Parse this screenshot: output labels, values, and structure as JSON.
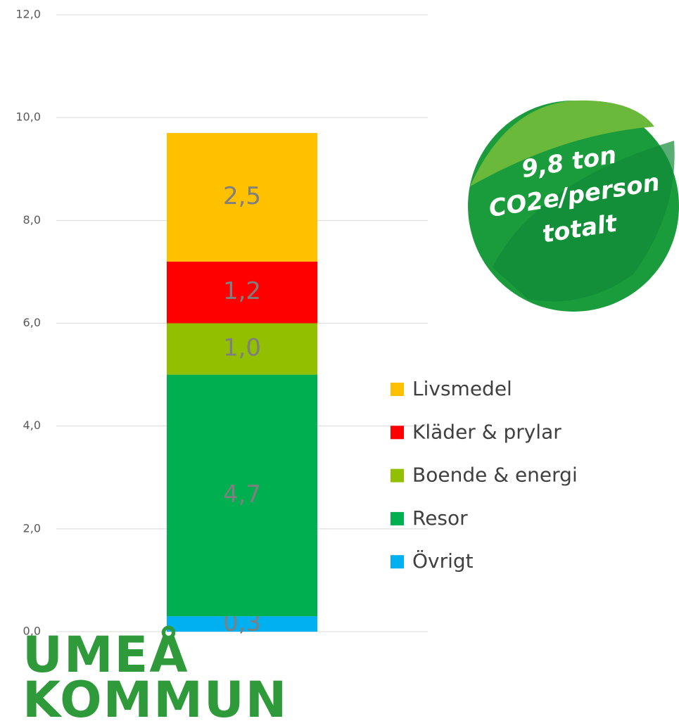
{
  "chart_data": {
    "type": "stacked_bar",
    "categories": [
      null
    ],
    "series": [
      {
        "name": "Övrigt",
        "color": "#00b0f0",
        "values": [
          0.3
        ],
        "value_labels": [
          "0,3"
        ]
      },
      {
        "name": "Resor",
        "color": "#00b050",
        "values": [
          4.7
        ],
        "value_labels": [
          "4,7"
        ]
      },
      {
        "name": "Boende & energi",
        "color": "#92c000",
        "values": [
          1.0
        ],
        "value_labels": [
          "1,0"
        ]
      },
      {
        "name": "Kläder & prylar",
        "color": "#ff0000",
        "values": [
          1.2
        ],
        "value_labels": [
          "1,2"
        ]
      },
      {
        "name": "Livsmedel",
        "color": "#ffc000",
        "values": [
          2.5
        ],
        "value_labels": [
          "2,5"
        ]
      }
    ],
    "ylim": [
      0,
      12
    ],
    "yticks": [
      {
        "value": 0,
        "label": "0,0"
      },
      {
        "value": 2,
        "label": "2,0"
      },
      {
        "value": 4,
        "label": "4,0"
      },
      {
        "value": 6,
        "label": "6,0"
      },
      {
        "value": 8,
        "label": "8,0"
      },
      {
        "value": 10,
        "label": "10,0"
      },
      {
        "value": 12,
        "label": "12,0"
      }
    ],
    "grid": true,
    "legend": "right",
    "annotation": [
      "9,8 ton",
      "CO2e/person",
      "totalt"
    ],
    "logo": [
      "UMEÅ",
      "KOMMUN"
    ]
  }
}
